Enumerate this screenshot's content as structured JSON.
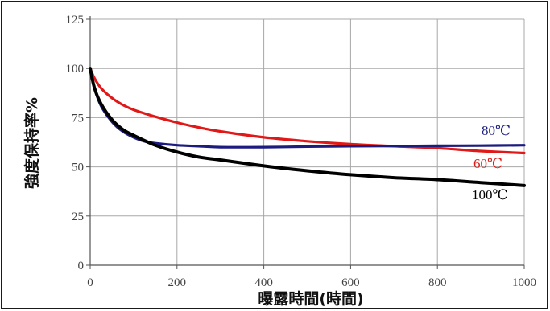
{
  "chart_data": {
    "type": "line",
    "title": "",
    "xlabel": "曝露時間(時間)",
    "ylabel": "強度保持率%",
    "xlim": [
      0,
      1000
    ],
    "ylim": [
      0,
      125
    ],
    "x_ticks": [
      "0",
      "200",
      "400",
      "600",
      "800",
      "1000"
    ],
    "y_ticks": [
      "0",
      "25",
      "50",
      "75",
      "100",
      "125"
    ],
    "grid": true,
    "series": [
      {
        "name": "80℃",
        "color": "#1c1c80",
        "x": [
          0,
          10,
          25,
          50,
          75,
          100,
          125,
          150,
          200,
          250,
          300,
          400,
          500,
          600,
          700,
          800,
          900,
          1000
        ],
        "y": [
          100,
          90,
          81,
          73,
          68,
          65,
          63,
          62,
          61,
          60.5,
          60,
          60,
          60.3,
          60.5,
          60.6,
          60.7,
          60.8,
          61
        ]
      },
      {
        "name": "60℃",
        "color": "#e01818",
        "x": [
          0,
          10,
          25,
          50,
          75,
          100,
          150,
          200,
          250,
          300,
          400,
          500,
          600,
          700,
          800,
          900,
          1000
        ],
        "y": [
          100,
          95,
          90,
          85,
          81.5,
          79,
          75.5,
          72.5,
          70,
          68,
          65,
          63,
          61.5,
          60.5,
          59.5,
          58,
          57
        ]
      },
      {
        "name": "100℃",
        "color": "#000000",
        "x": [
          0,
          10,
          25,
          50,
          75,
          100,
          150,
          200,
          250,
          300,
          400,
          500,
          600,
          700,
          800,
          900,
          1000
        ],
        "y": [
          100,
          90,
          82,
          74,
          69,
          66,
          61,
          57.5,
          55,
          53.5,
          50.5,
          48,
          46,
          44.5,
          43.5,
          42,
          40.5
        ]
      }
    ]
  }
}
